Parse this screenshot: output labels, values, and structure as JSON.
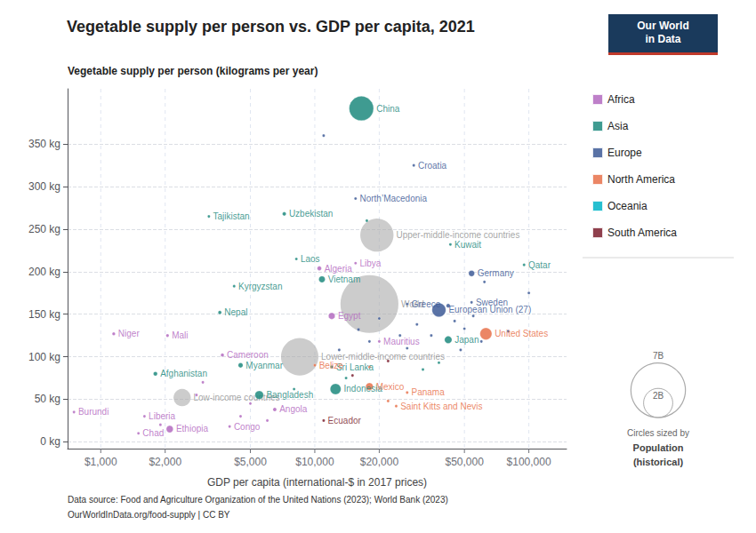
{
  "chart_data": {
    "type": "scatter",
    "title": "Vegetable supply per person vs. GDP per capita, 2021",
    "ylabel": "Vegetable supply per person (kilograms per year)",
    "xlabel": "GDP per capita (international-$ in 2017 prices)",
    "log": "x",
    "grid": true,
    "legend": "right",
    "xlim": [
      700,
      150000
    ],
    "xticks": [
      {
        "value": 1000,
        "label": "$1,000"
      },
      {
        "value": 2000,
        "label": "$2,000"
      },
      {
        "value": 5000,
        "label": "$5,000"
      },
      {
        "value": 10000,
        "label": "$10,000"
      },
      {
        "value": 20000,
        "label": "$20,000"
      },
      {
        "value": 50000,
        "label": "$50,000"
      },
      {
        "value": 100000,
        "label": "$100,000"
      }
    ],
    "ylim": [
      -8,
      415
    ],
    "yticks": [
      {
        "value": 0,
        "label": "0 kg"
      },
      {
        "value": 50,
        "label": "50 kg"
      },
      {
        "value": 100,
        "label": "100 kg"
      },
      {
        "value": 150,
        "label": "150 kg"
      },
      {
        "value": 200,
        "label": "200 kg"
      },
      {
        "value": 250,
        "label": "250 kg"
      },
      {
        "value": 300,
        "label": "300 kg"
      },
      {
        "value": 350,
        "label": "350 kg"
      }
    ],
    "series": [
      {
        "color": "#aaaaaa",
        "points": [
          {
            "label": "World",
            "x": 18000,
            "y": 162,
            "size": 7900000000
          },
          {
            "label": "Upper-middle-income countries",
            "x": 19500,
            "y": 243,
            "size": 2600000000
          },
          {
            "label": "Lower-middle-income countries",
            "x": 8500,
            "y": 100,
            "size": 3300000000
          },
          {
            "label": "Low-income countries",
            "x": 2400,
            "y": 52,
            "size": 700000000
          }
        ]
      },
      {
        "name": "Africa",
        "color": "#b36abf",
        "points": [
          {
            "label": "Algeria",
            "x": 10500,
            "y": 204,
            "size": 44000000
          },
          {
            "label": "Libya",
            "x": 15500,
            "y": 210,
            "size": 6900000
          },
          {
            "label": "Egypt",
            "x": 12000,
            "y": 148,
            "size": 103000000
          },
          {
            "label": "Niger",
            "x": 1150,
            "y": 127,
            "size": 24000000
          },
          {
            "label": "Mali",
            "x": 2050,
            "y": 125,
            "size": 22000000
          },
          {
            "label": "Mauritius",
            "x": 20000,
            "y": 118,
            "size": 1300000
          },
          {
            "label": "Cameroon",
            "x": 3700,
            "y": 102,
            "size": 27000000
          },
          {
            "label": "Angola",
            "x": 6500,
            "y": 38,
            "size": 33000000
          },
          {
            "label": "Congo",
            "x": 4000,
            "y": 18,
            "size": 5500000
          },
          {
            "label": "Ethiopia",
            "x": 2100,
            "y": 15,
            "size": 115000000
          },
          {
            "label": "Liberia",
            "x": 1600,
            "y": 30,
            "size": 5100000
          },
          {
            "label": "Chad",
            "x": 1500,
            "y": 10,
            "size": 17000000
          },
          {
            "label": "Burundi",
            "x": 750,
            "y": 35,
            "size": 12000000
          },
          {
            "x": 5000,
            "y": 45,
            "size": 2000000
          },
          {
            "x": 3000,
            "y": 70,
            "size": 1500000
          },
          {
            "x": 4500,
            "y": 30,
            "size": 2000000
          },
          {
            "x": 6000,
            "y": 25,
            "size": 4000000
          },
          {
            "x": 1900,
            "y": 20,
            "size": 3000000
          },
          {
            "x": 2800,
            "y": 55,
            "size": 2500000
          }
        ]
      },
      {
        "name": "Asia",
        "color": "#1d8a7e",
        "points": [
          {
            "label": "China",
            "x": 16500,
            "y": 392,
            "size": 1400000000
          },
          {
            "label": "Tajikistan",
            "x": 3200,
            "y": 265,
            "size": 9800000
          },
          {
            "label": "Uzbekistan",
            "x": 7200,
            "y": 268,
            "size": 34000000
          },
          {
            "label": "Kuwait",
            "x": 43000,
            "y": 232,
            "size": 4300000
          },
          {
            "label": "Qatar",
            "x": 95000,
            "y": 208,
            "size": 2900000
          },
          {
            "label": "Laos",
            "x": 8200,
            "y": 215,
            "size": 7300000
          },
          {
            "label": "Vietnam",
            "x": 10800,
            "y": 191,
            "size": 97000000
          },
          {
            "label": "Kyrgyzstan",
            "x": 4200,
            "y": 183,
            "size": 6600000
          },
          {
            "label": "Nepal",
            "x": 3600,
            "y": 152,
            "size": 29000000
          },
          {
            "label": "Japan",
            "x": 42000,
            "y": 120,
            "size": 126000000
          },
          {
            "label": "Myanmar",
            "x": 4500,
            "y": 90,
            "size": 54000000
          },
          {
            "label": "Afghanistan",
            "x": 1800,
            "y": 80,
            "size": 39000000
          },
          {
            "label": "Sri Lanka",
            "x": 12000,
            "y": 88,
            "size": 22000000
          },
          {
            "label": "Bangladesh",
            "x": 5500,
            "y": 55,
            "size": 169000000
          },
          {
            "label": "Indonesia",
            "x": 12500,
            "y": 62,
            "size": 273000000
          },
          {
            "x": 17500,
            "y": 260,
            "size": 3000000
          },
          {
            "x": 38000,
            "y": 93,
            "size": 1500000
          },
          {
            "x": 32000,
            "y": 85,
            "size": 600000
          },
          {
            "x": 8000,
            "y": 62,
            "size": 3000000
          },
          {
            "x": 14000,
            "y": 75,
            "size": 2000000
          }
        ]
      },
      {
        "name": "Europe",
        "color": "#3d5a96",
        "points": [
          {
            "label": "Croatia",
            "x": 29000,
            "y": 325,
            "size": 4000000
          },
          {
            "label": "North’Macedonia",
            "x": 15500,
            "y": 286,
            "size": 2100000
          },
          {
            "label": "Germany",
            "x": 54000,
            "y": 198,
            "size": 83000000
          },
          {
            "label": "Sweden",
            "x": 54000,
            "y": 164,
            "size": 10400000
          },
          {
            "label": "Greece",
            "x": 27000,
            "y": 162,
            "size": 10700000
          },
          {
            "label": "European Union (27)",
            "x": 38000,
            "y": 155,
            "size": 447000000
          },
          {
            "x": 11000,
            "y": 360,
            "size": 2000000
          },
          {
            "x": 62000,
            "y": 188,
            "size": 2000000
          },
          {
            "x": 100000,
            "y": 175,
            "size": 500000
          },
          {
            "x": 27000,
            "y": 110,
            "size": 1000000
          },
          {
            "x": 45000,
            "y": 142,
            "size": 1200000
          },
          {
            "x": 50000,
            "y": 133,
            "size": 800000
          },
          {
            "x": 55000,
            "y": 148,
            "size": 5800000
          },
          {
            "x": 60000,
            "y": 118,
            "size": 9000000
          },
          {
            "x": 48000,
            "y": 108,
            "size": 4500000
          },
          {
            "x": 35000,
            "y": 125,
            "size": 11000000
          },
          {
            "x": 42000,
            "y": 160,
            "size": 38000000
          },
          {
            "x": 30000,
            "y": 138,
            "size": 10000000
          },
          {
            "x": 25000,
            "y": 125,
            "size": 7000000
          },
          {
            "x": 18000,
            "y": 118,
            "size": 3000000
          },
          {
            "x": 16000,
            "y": 132,
            "size": 20000000
          },
          {
            "x": 13000,
            "y": 108,
            "size": 5500000
          },
          {
            "x": 20000,
            "y": 145,
            "size": 6500000
          },
          {
            "x": 80000,
            "y": 130,
            "size": 600000
          }
        ]
      },
      {
        "name": "North America",
        "color": "#e8714a",
        "points": [
          {
            "label": "United States",
            "x": 63000,
            "y": 127,
            "size": 330000000
          },
          {
            "label": "Belize",
            "x": 10000,
            "y": 90,
            "size": 400000
          },
          {
            "label": "Mexico",
            "x": 18000,
            "y": 65,
            "size": 130000000
          },
          {
            "label": "Panama",
            "x": 27000,
            "y": 58,
            "size": 4300000
          },
          {
            "label": "Saint Kitts and Nevis",
            "x": 24000,
            "y": 42,
            "size": 53000
          },
          {
            "x": 22000,
            "y": 48,
            "size": 700000
          },
          {
            "x": 18000,
            "y": 88,
            "size": 4000000
          }
        ]
      },
      {
        "name": "Oceania",
        "color": "#00b4c8",
        "points": []
      },
      {
        "name": "South America",
        "color": "#7b1f2e",
        "points": [
          {
            "label": "Ecuador",
            "x": 11000,
            "y": 25,
            "size": 17900000
          },
          {
            "x": 22000,
            "y": 95,
            "size": 4000000
          },
          {
            "x": 15000,
            "y": 78,
            "size": 18000000
          }
        ]
      }
    ],
    "size_legend": {
      "title": [
        "Circles sized by",
        "Population",
        "(historical)"
      ],
      "values": [
        7000000000,
        2000000000
      ],
      "labels": [
        "7B",
        "2B"
      ]
    },
    "logo": {
      "text": [
        "Our World",
        "in Data"
      ],
      "color": "#1a3a5c",
      "accent": "#c0392b"
    },
    "annotations": [
      "Data source: Food and Agriculture Organization of the United Nations (2023); World Bank (2023)",
      "OurWorldInData.org/food-supply | CC BY"
    ]
  }
}
